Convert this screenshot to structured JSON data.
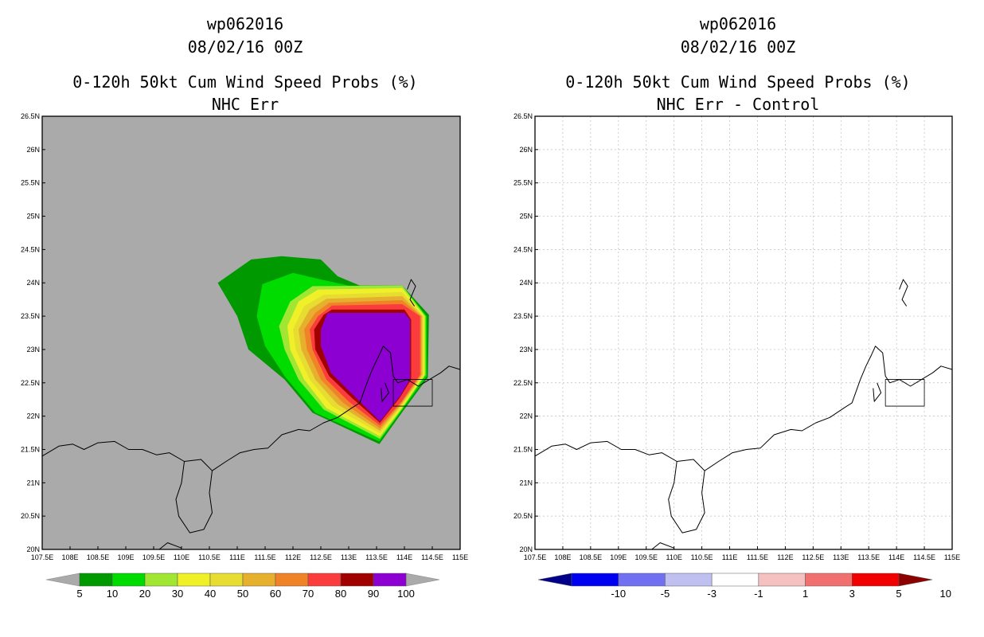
{
  "chart_data": [
    {
      "type": "contour-map",
      "title_lines": [
        "wp062016",
        "08/02/16 00Z",
        "0-120h 50kt Cum Wind Speed Probs (%)",
        "NHC Err"
      ],
      "xlabel": "",
      "ylabel": "",
      "xlim": [
        107.5,
        115.0
      ],
      "ylim": [
        20.0,
        26.5
      ],
      "x_ticks": [
        "107.5E",
        "108E",
        "108.5E",
        "109E",
        "109.5E",
        "110E",
        "110.5E",
        "111E",
        "111.5E",
        "112E",
        "112.5E",
        "113E",
        "113.5E",
        "114E",
        "114.5E",
        "115E"
      ],
      "y_ticks": [
        "20N",
        "20.5N",
        "21N",
        "21.5N",
        "22N",
        "22.5N",
        "23N",
        "23.5N",
        "24N",
        "24.5N",
        "25N",
        "25.5N",
        "26N",
        "26.5N"
      ],
      "background": "#aaaaaa",
      "levels": [
        5,
        10,
        20,
        30,
        40,
        50,
        60,
        70,
        80,
        90,
        100
      ],
      "colors": [
        "#009a00",
        "#00dc00",
        "#a0e632",
        "#f0f028",
        "#e6dc32",
        "#e6af2d",
        "#f08228",
        "#fa3c3c",
        "#a00000",
        "#8c00d2"
      ],
      "colorbar_labels": [
        "5",
        "10",
        "20",
        "30",
        "40",
        "50",
        "60",
        "70",
        "80",
        "90",
        "100"
      ],
      "contours": [
        {
          "level": 5,
          "polygon": [
            [
              111.0,
              23.5
            ],
            [
              110.65,
              24.0
            ],
            [
              111.25,
              24.35
            ],
            [
              111.8,
              24.4
            ],
            [
              112.5,
              24.35
            ],
            [
              112.8,
              24.1
            ],
            [
              113.2,
              23.96
            ],
            [
              113.96,
              23.96
            ],
            [
              114.44,
              23.52
            ],
            [
              114.42,
              22.58
            ],
            [
              113.96,
              22.06
            ],
            [
              113.55,
              21.58
            ],
            [
              112.35,
              22.05
            ],
            [
              111.85,
              22.55
            ],
            [
              111.2,
              23.0
            ]
          ]
        },
        {
          "level": 10,
          "polygon": [
            [
              111.35,
              23.5
            ],
            [
              111.45,
              23.98
            ],
            [
              112.0,
              24.15
            ],
            [
              112.5,
              24.05
            ],
            [
              113.0,
              23.96
            ],
            [
              113.96,
              23.96
            ],
            [
              114.4,
              23.5
            ],
            [
              114.4,
              22.6
            ],
            [
              113.95,
              22.08
            ],
            [
              113.55,
              21.62
            ],
            [
              112.4,
              22.05
            ],
            [
              111.85,
              22.6
            ],
            [
              111.5,
              23.05
            ]
          ]
        },
        {
          "level": 20,
          "polygon": [
            [
              111.75,
              23.35
            ],
            [
              111.95,
              23.72
            ],
            [
              112.35,
              23.95
            ],
            [
              113.96,
              23.96
            ],
            [
              114.38,
              23.5
            ],
            [
              114.38,
              22.62
            ],
            [
              113.95,
              22.1
            ],
            [
              113.56,
              21.66
            ],
            [
              112.55,
              22.1
            ],
            [
              112.1,
              22.55
            ],
            [
              111.85,
              23.0
            ]
          ]
        },
        {
          "level": 30,
          "polygon": [
            [
              111.9,
              23.35
            ],
            [
              112.1,
              23.72
            ],
            [
              112.45,
              23.9
            ],
            [
              113.96,
              23.92
            ],
            [
              114.36,
              23.5
            ],
            [
              114.36,
              22.62
            ],
            [
              113.95,
              22.12
            ],
            [
              113.56,
              21.7
            ],
            [
              112.6,
              22.12
            ],
            [
              112.2,
              22.55
            ],
            [
              111.95,
              23.0
            ]
          ]
        },
        {
          "level": 40,
          "polygon": [
            [
              112.0,
              23.3
            ],
            [
              112.2,
              23.65
            ],
            [
              112.55,
              23.82
            ],
            [
              113.96,
              23.86
            ],
            [
              114.34,
              23.5
            ],
            [
              114.34,
              22.62
            ],
            [
              113.95,
              22.15
            ],
            [
              113.56,
              21.74
            ],
            [
              112.7,
              22.15
            ],
            [
              112.3,
              22.55
            ],
            [
              112.05,
              23.0
            ]
          ]
        },
        {
          "level": 50,
          "polygon": [
            [
              112.1,
              23.3
            ],
            [
              112.3,
              23.6
            ],
            [
              112.6,
              23.76
            ],
            [
              113.96,
              23.8
            ],
            [
              114.32,
              23.5
            ],
            [
              114.32,
              22.62
            ],
            [
              113.95,
              22.18
            ],
            [
              113.56,
              21.78
            ],
            [
              112.8,
              22.18
            ],
            [
              112.4,
              22.55
            ],
            [
              112.15,
              23.0
            ]
          ]
        },
        {
          "level": 60,
          "polygon": [
            [
              112.2,
              23.3
            ],
            [
              112.4,
              23.55
            ],
            [
              112.65,
              23.7
            ],
            [
              113.96,
              23.74
            ],
            [
              114.3,
              23.5
            ],
            [
              114.3,
              22.62
            ],
            [
              113.95,
              22.2
            ],
            [
              113.56,
              21.82
            ],
            [
              112.9,
              22.2
            ],
            [
              112.5,
              22.55
            ],
            [
              112.25,
              23.0
            ]
          ]
        },
        {
          "level": 70,
          "polygon": [
            [
              112.3,
              23.3
            ],
            [
              112.45,
              23.5
            ],
            [
              112.7,
              23.66
            ],
            [
              113.96,
              23.68
            ],
            [
              114.28,
              23.5
            ],
            [
              114.28,
              22.62
            ],
            [
              113.95,
              22.22
            ],
            [
              113.56,
              21.86
            ],
            [
              113.0,
              22.22
            ],
            [
              112.6,
              22.55
            ],
            [
              112.35,
              23.0
            ]
          ]
        },
        {
          "level": 80,
          "polygon": [
            [
              112.38,
              23.3
            ],
            [
              112.55,
              23.52
            ],
            [
              112.7,
              23.6
            ],
            [
              114.0,
              23.6
            ],
            [
              114.12,
              23.45
            ],
            [
              114.12,
              22.55
            ],
            [
              113.92,
              22.28
            ],
            [
              113.56,
              21.9
            ],
            [
              113.05,
              22.28
            ],
            [
              112.65,
              22.6
            ],
            [
              112.4,
              23.0
            ]
          ]
        },
        {
          "level": 90,
          "polygon": [
            [
              112.5,
              23.3
            ],
            [
              112.62,
              23.55
            ],
            [
              114.0,
              23.55
            ],
            [
              114.1,
              23.45
            ],
            [
              114.1,
              22.55
            ],
            [
              113.92,
              22.3
            ],
            [
              113.56,
              21.92
            ],
            [
              113.1,
              22.3
            ],
            [
              112.68,
              22.65
            ],
            [
              112.5,
              23.05
            ]
          ]
        }
      ]
    },
    {
      "type": "contour-map",
      "title_lines": [
        "wp062016",
        "08/02/16 00Z",
        "0-120h 50kt Cum Wind Speed Probs (%)",
        "NHC Err - Control"
      ],
      "xlabel": "",
      "ylabel": "",
      "xlim": [
        107.5,
        115.0
      ],
      "ylim": [
        20.0,
        26.5
      ],
      "x_ticks": [
        "107.5E",
        "108E",
        "108.5E",
        "109E",
        "109.5E",
        "110E",
        "110.5E",
        "111E",
        "111.5E",
        "112E",
        "112.5E",
        "113E",
        "113.5E",
        "114E",
        "114.5E",
        "115E"
      ],
      "y_ticks": [
        "20N",
        "20.5N",
        "21N",
        "21.5N",
        "22N",
        "22.5N",
        "23N",
        "23.5N",
        "24N",
        "24.5N",
        "25N",
        "25.5N",
        "26N",
        "26.5N"
      ],
      "background": "#ffffff",
      "grid": true,
      "levels": [
        -10,
        -5,
        -3,
        -1,
        1,
        3,
        5,
        10
      ],
      "colors": [
        "#00008c",
        "#0000f0",
        "#7070f0",
        "#c0c0f0",
        "#ffffff",
        "#f5c0c0",
        "#f07070",
        "#f00000",
        "#8c0000"
      ],
      "colorbar_labels": [
        "-10",
        "-5",
        "-3",
        "-1",
        "1",
        "3",
        "5",
        "10"
      ],
      "contours": []
    }
  ],
  "coastline": [
    [
      [
        107.5,
        21.4
      ],
      [
        107.8,
        21.55
      ],
      [
        108.05,
        21.58
      ],
      [
        108.25,
        21.5
      ],
      [
        108.5,
        21.6
      ],
      [
        108.8,
        21.62
      ],
      [
        109.05,
        21.5
      ],
      [
        109.3,
        21.5
      ],
      [
        109.55,
        21.42
      ],
      [
        109.78,
        21.45
      ],
      [
        110.05,
        21.32
      ],
      [
        110.35,
        21.35
      ],
      [
        110.55,
        21.18
      ],
      [
        110.8,
        21.32
      ],
      [
        111.05,
        21.45
      ],
      [
        111.3,
        21.5
      ],
      [
        111.55,
        21.52
      ],
      [
        111.8,
        21.72
      ],
      [
        112.1,
        21.8
      ],
      [
        112.3,
        21.78
      ],
      [
        112.55,
        21.9
      ],
      [
        112.8,
        21.98
      ],
      [
        113.05,
        22.12
      ],
      [
        113.2,
        22.2
      ],
      [
        113.35,
        22.55
      ],
      [
        113.45,
        22.75
      ],
      [
        113.55,
        22.92
      ],
      [
        113.62,
        23.05
      ],
      [
        113.75,
        22.95
      ],
      [
        113.8,
        22.6
      ],
      [
        113.88,
        22.5
      ],
      [
        114.05,
        22.55
      ],
      [
        114.25,
        22.45
      ],
      [
        114.45,
        22.55
      ],
      [
        114.65,
        22.65
      ],
      [
        114.8,
        22.75
      ],
      [
        115.0,
        22.7
      ]
    ],
    [
      [
        110.05,
        21.32
      ],
      [
        110.0,
        21.0
      ],
      [
        109.9,
        20.75
      ],
      [
        109.95,
        20.5
      ],
      [
        110.15,
        20.25
      ],
      [
        110.4,
        20.3
      ],
      [
        110.55,
        20.55
      ],
      [
        110.5,
        20.85
      ],
      [
        110.55,
        21.18
      ]
    ],
    [
      [
        109.6,
        20.0
      ],
      [
        109.75,
        20.1
      ],
      [
        110.0,
        20.02
      ]
    ],
    [
      [
        113.65,
        22.5
      ],
      [
        113.72,
        22.35
      ],
      [
        113.6,
        22.22
      ],
      [
        113.58,
        22.42
      ]
    ],
    [
      [
        114.05,
        23.9
      ],
      [
        114.12,
        24.05
      ],
      [
        114.2,
        23.95
      ],
      [
        114.1,
        23.75
      ],
      [
        114.18,
        23.65
      ]
    ]
  ],
  "boxes": [
    {
      "lon": [
        113.8,
        114.5
      ],
      "lat": [
        22.15,
        22.55
      ]
    }
  ]
}
